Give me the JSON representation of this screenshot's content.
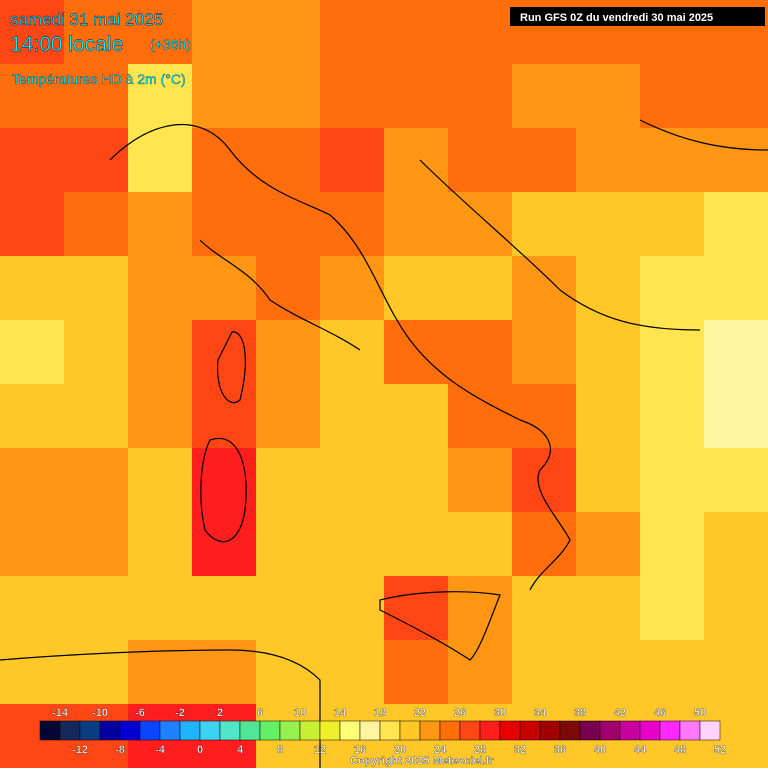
{
  "header": {
    "date": "samedi 31 mai 2025",
    "time": "14:00 locale",
    "lead": "(+36h)",
    "subtitle": "Températures HD à 2m (°C)",
    "run": "Run GFS 0Z du vendredi 30 mai 2025"
  },
  "temperature_grid": [
    [
      26,
      25,
      24,
      23,
      22,
      24,
      24,
      25,
      25,
      25,
      24,
      24
    ],
    [
      25,
      24,
      18,
      22,
      23,
      24,
      25,
      24,
      23,
      23,
      24,
      25
    ],
    [
      26,
      27,
      19,
      24,
      24,
      26,
      23,
      24,
      24,
      23,
      23,
      22
    ],
    [
      26,
      24,
      23,
      24,
      25,
      24,
      22,
      22,
      21,
      20,
      20,
      19
    ],
    [
      20,
      20,
      22,
      22,
      25,
      22,
      21,
      21,
      22,
      21,
      19,
      18
    ],
    [
      19,
      20,
      22,
      27,
      22,
      21,
      24,
      25,
      22,
      20,
      19,
      17
    ],
    [
      20,
      21,
      22,
      26,
      22,
      21,
      21,
      24,
      25,
      21,
      19,
      17
    ],
    [
      22,
      22,
      21,
      29,
      21,
      21,
      21,
      23,
      26,
      20,
      19,
      18
    ],
    [
      22,
      22,
      21,
      28,
      21,
      21,
      21,
      21,
      25,
      22,
      19,
      20
    ],
    [
      21,
      21,
      21,
      21,
      21,
      21,
      26,
      23,
      21,
      20,
      19,
      21
    ],
    [
      21,
      21,
      22,
      23,
      21,
      21,
      25,
      23,
      20,
      20,
      20,
      21
    ],
    [
      26,
      26,
      28,
      29,
      21,
      20,
      21,
      21,
      21,
      20,
      21,
      21
    ]
  ],
  "colorbar": {
    "min": -16,
    "step": 2,
    "colors": [
      "#060634",
      "#14285a",
      "#0a3c82",
      "#0000a0",
      "#0000d2",
      "#0a46ff",
      "#1e82ff",
      "#1eb4ff",
      "#3cd2f0",
      "#50e6c8",
      "#50e696",
      "#64f064",
      "#96f050",
      "#c8f032",
      "#f0f028",
      "#ffff78",
      "#fff5a0",
      "#ffe650",
      "#ffc828",
      "#ff9614",
      "#ff6e0a",
      "#ff4614",
      "#ff1e1e",
      "#e60000",
      "#c80000",
      "#a00000",
      "#7d0a0a",
      "#780050",
      "#a0006e",
      "#c800a0",
      "#e600c8",
      "#ff28ff",
      "#ff78ff",
      "#ffd2ff"
    ],
    "labels_top": [
      -14,
      -10,
      -6,
      -2,
      2,
      6,
      10,
      14,
      18,
      22,
      26,
      30,
      34,
      38,
      42,
      46,
      50
    ],
    "labels_bottom": [
      -12,
      -8,
      -4,
      0,
      4,
      8,
      12,
      16,
      20,
      24,
      28,
      32,
      36,
      40,
      44,
      48,
      52
    ]
  },
  "footer": {
    "copyright": "Copyright 2025 Meteociel.fr"
  }
}
